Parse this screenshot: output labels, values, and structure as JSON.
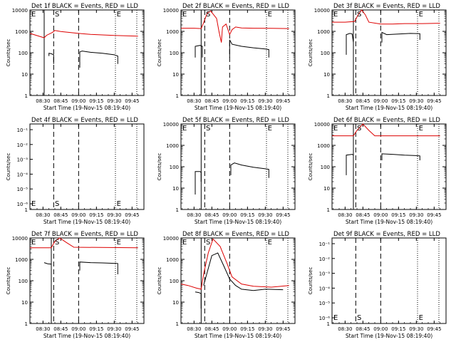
{
  "figure": {
    "time_ticks": [
      "08:30",
      "08:45",
      "09:00",
      "09:15",
      "09:30",
      "09:45"
    ],
    "xlabel": "Start Time (19-Nov-15 08:19:40)",
    "ylabel": "Counts/sec",
    "log_ticks": [
      "1",
      "10",
      "100",
      "1000",
      "10000"
    ],
    "sci_ticks": [
      "10⁻¹",
      "10⁻²",
      "10⁻³",
      "10⁻⁴",
      "10⁻⁵",
      "10⁻⁶"
    ],
    "marker_labels": {
      "E": "E",
      "S": "S"
    },
    "colors": {
      "events": "#000000",
      "lld": "#dd0000",
      "axes": "#000000"
    }
  },
  "chart_data": [
    {
      "type": "line",
      "title": "Det 1f BLACK = Events, RED = LLD",
      "ylim": [
        1,
        10000
      ],
      "yscale": "log",
      "markers": {
        "solid": [
          "08:31"
        ],
        "dashed": [
          "08:39",
          "09:00"
        ],
        "dotted": [
          "09:31",
          "09:49"
        ]
      },
      "marker_labels": [
        {
          "text": "E",
          "x": "08:22"
        },
        {
          "text": "S",
          "x": "08:40"
        },
        {
          "text": "E",
          "x": "09:32"
        }
      ],
      "series": [
        {
          "color": "red",
          "points": [
            [
              "08:19",
              800
            ],
            [
              "08:31",
              500
            ],
            [
              "08:33",
              650
            ],
            [
              "08:38",
              900
            ],
            [
              "08:40",
              1100
            ],
            [
              "08:45",
              980
            ],
            [
              "09:00",
              800
            ],
            [
              "09:10",
              720
            ],
            [
              "09:20",
              680
            ],
            [
              "09:30",
              640
            ],
            [
              "09:40",
              620
            ],
            [
              "09:50",
              600
            ]
          ]
        },
        {
          "color": "black",
          "segments": [
            [
              [
                "08:35",
                70
              ],
              [
                "08:35",
                95
              ],
              [
                "08:37",
                90
              ],
              [
                "08:39",
                80
              ],
              [
                "08:39",
                30
              ]
            ],
            [
              [
                "09:01",
                20
              ],
              [
                "09:01",
                110
              ],
              [
                "09:03",
                120
              ],
              [
                "09:10",
                105
              ],
              [
                "09:20",
                95
              ],
              [
                "09:30",
                80
              ],
              [
                "09:33",
                70
              ],
              [
                "09:33",
                30
              ]
            ]
          ]
        }
      ]
    },
    {
      "type": "line",
      "title": "Det 2f BLACK = Events, RED = LLD",
      "ylim": [
        1,
        10000
      ],
      "yscale": "log",
      "markers": {
        "solid": [
          "08:36"
        ],
        "dashed": [
          "08:39",
          "09:00"
        ],
        "dotted": [
          "09:31",
          "09:49"
        ]
      },
      "marker_labels": [
        {
          "text": "E",
          "x": "08:22"
        },
        {
          "text": "S",
          "x": "08:40"
        },
        {
          "text": "E",
          "x": "09:32"
        }
      ],
      "series": [
        {
          "color": "red",
          "points": [
            [
              "08:19",
              1400
            ],
            [
              "08:30",
              1400
            ],
            [
              "08:36",
              1350
            ],
            [
              "08:38",
              2500
            ],
            [
              "08:41",
              7000
            ],
            [
              "08:44",
              9000
            ],
            [
              "08:49",
              4000
            ],
            [
              "08:51",
              1000
            ],
            [
              "08:53",
              300
            ],
            [
              "08:54",
              1600
            ],
            [
              "08:57",
              2200
            ],
            [
              "09:00",
              700
            ],
            [
              "09:02",
              1200
            ],
            [
              "09:05",
              1600
            ],
            [
              "09:10",
              1450
            ],
            [
              "09:20",
              1400
            ],
            [
              "09:35",
              1380
            ],
            [
              "09:50",
              1350
            ]
          ]
        },
        {
          "color": "black",
          "segments": [
            [
              [
                "08:31",
                60
              ],
              [
                "08:31",
                200
              ],
              [
                "08:35",
                220
              ],
              [
                "08:37",
                200
              ],
              [
                "08:37",
                60
              ]
            ],
            [
              [
                "09:00",
                60
              ],
              [
                "09:00",
                400
              ],
              [
                "09:02",
                250
              ],
              [
                "09:10",
                200
              ],
              [
                "09:20",
                170
              ],
              [
                "09:30",
                150
              ],
              [
                "09:33",
                140
              ],
              [
                "09:33",
                60
              ]
            ]
          ]
        }
      ]
    },
    {
      "type": "line",
      "title": "Det 3f BLACK = Events, RED = LLD",
      "ylim": [
        1,
        10000
      ],
      "yscale": "log",
      "markers": {
        "solid": [
          "08:37"
        ],
        "dashed": [
          "08:39",
          "09:00"
        ],
        "dotted": [
          "09:31",
          "09:49"
        ]
      },
      "marker_labels": [
        {
          "text": "E",
          "x": "08:22"
        },
        {
          "text": "S",
          "x": "08:40"
        },
        {
          "text": "E",
          "x": "09:32"
        }
      ],
      "series": [
        {
          "color": "red",
          "points": [
            [
              "08:19",
              2700
            ],
            [
              "08:30",
              2700
            ],
            [
              "08:38",
              2900
            ],
            [
              "08:41",
              6000
            ],
            [
              "08:44",
              10000
            ],
            [
              "08:47",
              6000
            ],
            [
              "08:50",
              2700
            ],
            [
              "09:00",
              2200
            ],
            [
              "09:10",
              2200
            ],
            [
              "09:20",
              2300
            ],
            [
              "09:35",
              2300
            ],
            [
              "09:50",
              2400
            ]
          ]
        },
        {
          "color": "black",
          "segments": [
            [
              [
                "08:31",
                80
              ],
              [
                "08:31",
                700
              ],
              [
                "08:34",
                800
              ],
              [
                "08:36",
                750
              ],
              [
                "08:37",
                300
              ]
            ],
            [
              [
                "09:01",
                300
              ],
              [
                "09:01",
                900
              ],
              [
                "09:05",
                700
              ],
              [
                "09:15",
                750
              ],
              [
                "09:25",
                800
              ],
              [
                "09:33",
                780
              ],
              [
                "09:33",
                400
              ]
            ]
          ]
        }
      ]
    },
    {
      "type": "line",
      "title": "Det 4f BLACK = Events, RED = LLD",
      "yscale": "log",
      "ytick_style": "scientific",
      "markers": {
        "solid": [],
        "dashed": [
          "08:39",
          "09:00"
        ],
        "dotted": [
          "09:31",
          "09:49"
        ]
      },
      "marker_labels": [
        {
          "text": "E",
          "x": "08:22"
        },
        {
          "text": "S",
          "x": "08:40"
        },
        {
          "text": "E",
          "x": "09:32"
        }
      ],
      "series": []
    },
    {
      "type": "line",
      "title": "Det 5f BLACK = Events, RED = LLD",
      "ylim": [
        1,
        10000
      ],
      "yscale": "log",
      "markers": {
        "solid": [
          "08:36"
        ],
        "dashed": [
          "08:39",
          "09:00"
        ],
        "dotted": [
          "09:31",
          "09:49"
        ]
      },
      "marker_labels": [
        {
          "text": "E",
          "x": "08:22"
        },
        {
          "text": "S",
          "x": "08:40"
        },
        {
          "text": "E",
          "x": "09:32"
        }
      ],
      "series": [
        {
          "color": "black",
          "segments": [
            [
              [
                "08:31",
                5
              ],
              [
                "08:31",
                60
              ],
              [
                "08:35",
                60
              ],
              [
                "08:36",
                55
              ],
              [
                "08:36",
                20
              ]
            ],
            [
              [
                "09:01",
                40
              ],
              [
                "09:01",
                120
              ],
              [
                "09:04",
                150
              ],
              [
                "09:10",
                120
              ],
              [
                "09:20",
                95
              ],
              [
                "09:30",
                80
              ],
              [
                "09:33",
                75
              ],
              [
                "09:33",
                30
              ]
            ]
          ]
        }
      ]
    },
    {
      "type": "line",
      "title": "Det 6f BLACK = Events, RED = LLD",
      "ylim": [
        1,
        10000
      ],
      "yscale": "log",
      "markers": {
        "solid": [
          "08:37"
        ],
        "dashed": [
          "08:39",
          "09:00"
        ],
        "dotted": [
          "09:31",
          "09:49"
        ]
      },
      "marker_labels": [
        {
          "text": "E",
          "x": "08:22"
        },
        {
          "text": "S",
          "x": "08:40"
        },
        {
          "text": "E",
          "x": "09:32"
        }
      ],
      "series": [
        {
          "color": "red",
          "points": [
            [
              "08:19",
              2800
            ],
            [
              "08:37",
              2800
            ],
            [
              "08:40",
              5000
            ],
            [
              "08:45",
              10000
            ],
            [
              "08:50",
              5000
            ],
            [
              "08:55",
              2800
            ],
            [
              "09:50",
              2800
            ]
          ]
        },
        {
          "color": "black",
          "segments": [
            [
              [
                "08:31",
                40
              ],
              [
                "08:31",
                350
              ],
              [
                "08:36",
                380
              ],
              [
                "08:37",
                350
              ],
              [
                "08:37",
                150
              ]
            ],
            [
              [
                "09:01",
                200
              ],
              [
                "09:01",
                400
              ],
              [
                "09:10",
                380
              ],
              [
                "09:20",
                350
              ],
              [
                "09:30",
                330
              ],
              [
                "09:33",
                320
              ],
              [
                "09:33",
                200
              ]
            ]
          ]
        }
      ]
    },
    {
      "type": "line",
      "title": "Det 7f BLACK = Events, RED = LLD",
      "ylim": [
        1,
        10000
      ],
      "yscale": "log",
      "markers": {
        "solid": [
          "08:37"
        ],
        "dashed": [
          "08:39",
          "09:00"
        ],
        "dotted": [
          "09:31",
          "09:49"
        ]
      },
      "marker_labels": [
        {
          "text": "E",
          "x": "08:22"
        },
        {
          "text": "S",
          "x": "08:40"
        },
        {
          "text": "E",
          "x": "09:32"
        }
      ],
      "series": [
        {
          "color": "red",
          "points": [
            [
              "08:19",
              3500
            ],
            [
              "08:37",
              3500
            ],
            [
              "08:40",
              7000
            ],
            [
              "08:44",
              12000
            ],
            [
              "08:50",
              6000
            ],
            [
              "08:56",
              3700
            ],
            [
              "09:50",
              3500
            ]
          ]
        },
        {
          "color": "black",
          "segments": [
            [
              [
                "08:31",
                700
              ],
              [
                "08:34",
                620
              ],
              [
                "08:37",
                600
              ],
              [
                "08:37",
                80
              ]
            ],
            [
              [
                "09:01",
                300
              ],
              [
                "09:01",
                750
              ],
              [
                "09:10",
                700
              ],
              [
                "09:20",
                680
              ],
              [
                "09:30",
                650
              ],
              [
                "09:33",
                640
              ],
              [
                "09:33",
                200
              ]
            ]
          ]
        }
      ]
    },
    {
      "type": "line",
      "title": "Det 8f BLACK = Events, RED = LLD",
      "ylim": [
        1,
        10000
      ],
      "yscale": "log",
      "markers": {
        "solid": [
          "08:36"
        ],
        "dashed": [
          "08:39",
          "09:00"
        ],
        "dotted": [
          "09:31",
          "09:49"
        ]
      },
      "marker_labels": [
        {
          "text": "E",
          "x": "08:22"
        },
        {
          "text": "S",
          "x": "08:40"
        },
        {
          "text": "E",
          "x": "09:32"
        }
      ],
      "series": [
        {
          "color": "red",
          "points": [
            [
              "08:19",
              70
            ],
            [
              "08:25",
              60
            ],
            [
              "08:32",
              45
            ],
            [
              "08:36",
              40
            ],
            [
              "08:38",
              200
            ],
            [
              "08:42",
              2000
            ],
            [
              "08:46",
              9000
            ],
            [
              "08:52",
              4000
            ],
            [
              "08:58",
              600
            ],
            [
              "09:02",
              150
            ],
            [
              "09:10",
              70
            ],
            [
              "09:20",
              55
            ],
            [
              "09:35",
              50
            ],
            [
              "09:50",
              60
            ]
          ]
        },
        {
          "color": "black",
          "segments": [
            [
              [
                "08:31",
                30
              ],
              [
                "08:34",
                28
              ],
              [
                "08:36",
                25
              ],
              [
                "08:36",
                5
              ]
            ],
            [
              [
                "08:38",
                60
              ],
              [
                "08:45",
                1500
              ],
              [
                "08:50",
                2000
              ],
              [
                "08:55",
                500
              ],
              [
                "09:00",
                120
              ],
              [
                "09:05",
                60
              ],
              [
                "09:10",
                40
              ],
              [
                "09:20",
                35
              ],
              [
                "09:30",
                40
              ],
              [
                "09:45",
                38
              ]
            ]
          ]
        }
      ]
    },
    {
      "type": "line",
      "title": "Det 9f BLACK = Events, RED = LLD",
      "yscale": "log",
      "ytick_style": "scientific",
      "markers": {
        "solid": [],
        "dashed": [
          "08:39",
          "09:00"
        ],
        "dotted": [
          "09:31",
          "09:49"
        ]
      },
      "marker_labels": [
        {
          "text": "E",
          "x": "08:22"
        },
        {
          "text": "S",
          "x": "08:40"
        },
        {
          "text": "E",
          "x": "09:32"
        }
      ],
      "series": []
    }
  ]
}
